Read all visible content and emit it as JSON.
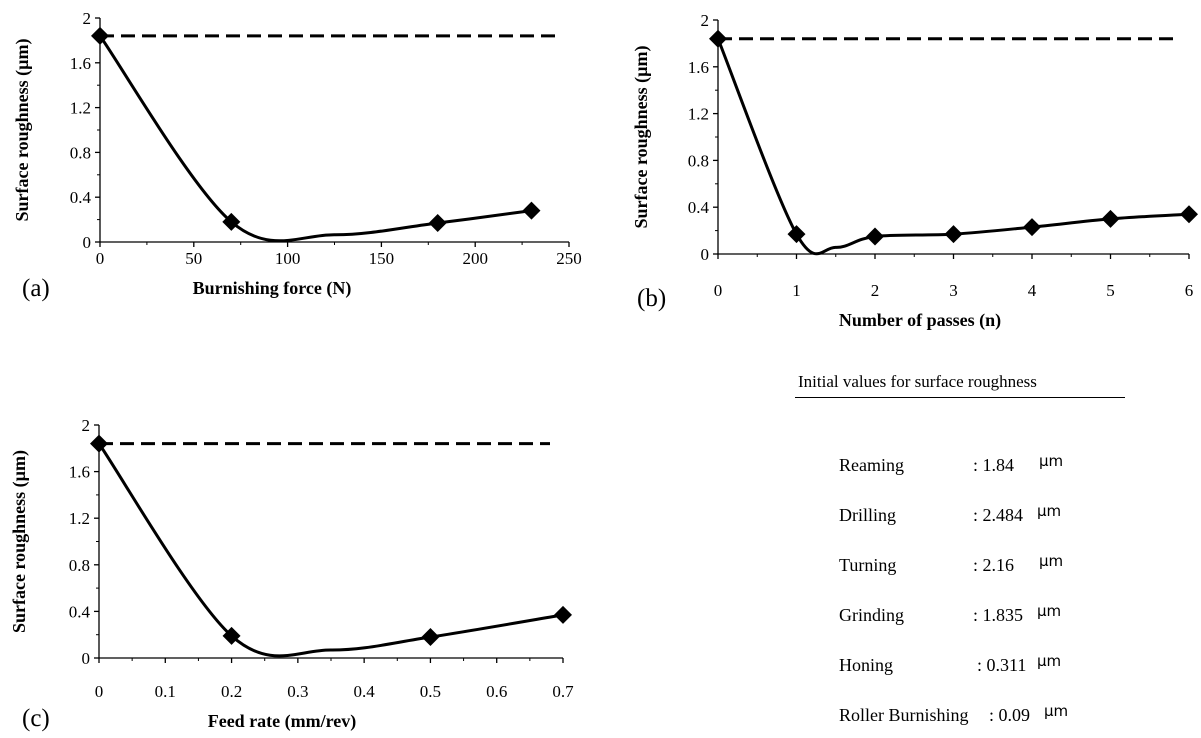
{
  "chart_data": [
    {
      "type": "line",
      "panel_label": "(a)",
      "xlabel": "Burnishing force (N)",
      "ylabel": "Surface roughness (µm)",
      "xlim": [
        0,
        250
      ],
      "ylim": [
        0,
        2
      ],
      "xticks": [
        "0",
        "50",
        "100",
        "150",
        "200",
        "250"
      ],
      "yticks": [
        "0",
        "0.4",
        "0.8",
        "1.2",
        "1.6",
        "2"
      ],
      "x": [
        0,
        70,
        180,
        230
      ],
      "y": [
        1.84,
        0.18,
        0.17,
        0.28
      ],
      "reference_line": 1.84,
      "smooth": true
    },
    {
      "type": "line",
      "panel_label": "(b)",
      "xlabel": "Number of passes (n)",
      "ylabel": "Surface roughness (µm)",
      "xlim": [
        0,
        6
      ],
      "ylim": [
        0,
        2
      ],
      "xticks": [
        "0",
        "1",
        "2",
        "3",
        "4",
        "5",
        "6"
      ],
      "yticks": [
        "0",
        "0.4",
        "0.8",
        "1.2",
        "1.6",
        "2"
      ],
      "x": [
        0,
        1,
        2,
        3,
        4,
        5,
        6
      ],
      "y": [
        1.84,
        0.17,
        0.15,
        0.17,
        0.23,
        0.3,
        0.34
      ],
      "reference_line": 1.84,
      "smooth": true
    },
    {
      "type": "line",
      "panel_label": "(c)",
      "xlabel": "Feed rate (mm/rev)",
      "ylabel": "Surface roughness (µm)",
      "xlim": [
        0,
        0.7
      ],
      "ylim": [
        0,
        2
      ],
      "xticks": [
        "0",
        "0.1",
        "0.2",
        "0.3",
        "0.4",
        "0.5",
        "0.6",
        "0.7"
      ],
      "yticks": [
        "0",
        "0.4",
        "0.8",
        "1.2",
        "1.6",
        "2"
      ],
      "x": [
        0,
        0.2,
        0.5,
        0.7
      ],
      "y": [
        1.84,
        0.19,
        0.18,
        0.37
      ],
      "reference_line": 1.84,
      "smooth": true
    }
  ],
  "legend": {
    "title": "Initial values for surface roughness",
    "unit": "µm",
    "rows": [
      {
        "name": "Reaming",
        "value": ": 1.84"
      },
      {
        "name": "Drilling",
        "value": ": 2.484"
      },
      {
        "name": "Turning",
        "value": ": 2.16"
      },
      {
        "name": "Grinding",
        "value": ": 1.835"
      },
      {
        "name": "Honing",
        "value": ": 0.311"
      },
      {
        "name": "Roller Burnishing",
        "value": ": 0.09"
      }
    ]
  }
}
